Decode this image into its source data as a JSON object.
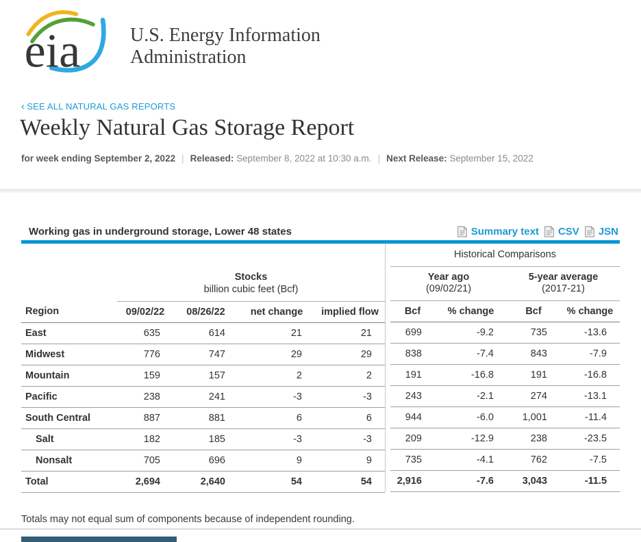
{
  "colors": {
    "accent_blue": "#0096d6",
    "link_blue": "#1b9bd3",
    "dark_bar": "#335d72",
    "logo_yellow": "#f2b31c",
    "logo_green": "#55a038",
    "logo_blue": "#2fa8e1"
  },
  "brand": {
    "logo_text": "eia",
    "org_line1": "U.S. Energy Information",
    "org_line2": "Administration"
  },
  "nav": {
    "back_chevron": "‹",
    "back_label": "SEE ALL NATURAL GAS REPORTS"
  },
  "header": {
    "title": "Weekly Natural Gas Storage Report",
    "week_ending": "for week ending September 2, 2022",
    "released_label": "Released:",
    "released_value": "September 8, 2022 at 10:30 a.m.",
    "next_release_label": "Next Release:",
    "next_release_value": "September 15, 2022",
    "separator": "|"
  },
  "report": {
    "title": "Working gas in underground storage, Lower 48 states",
    "links": [
      {
        "icon": "document-icon",
        "label": "Summary text"
      },
      {
        "icon": "document-icon",
        "label": "CSV"
      },
      {
        "icon": "document-icon",
        "label": "JSN"
      }
    ]
  },
  "table": {
    "group_headers": {
      "historical": "Historical Comparisons",
      "stocks_title": "Stocks",
      "stocks_subtitle": "billion cubic feet (Bcf)",
      "year_ago_title": "Year ago",
      "year_ago_subtitle": "(09/02/21)",
      "five_year_title": "5-year average",
      "five_year_subtitle": "(2017-21)"
    },
    "columns": [
      "Region",
      "09/02/22",
      "08/26/22",
      "net change",
      "implied flow",
      "Bcf",
      "% change",
      "Bcf",
      "% change"
    ],
    "rows": [
      {
        "region": "East",
        "indent": false,
        "bold": false,
        "values": [
          "635",
          "614",
          "21",
          "21",
          "699",
          "-9.2",
          "735",
          "-13.6"
        ]
      },
      {
        "region": "Midwest",
        "indent": false,
        "bold": false,
        "values": [
          "776",
          "747",
          "29",
          "29",
          "838",
          "-7.4",
          "843",
          "-7.9"
        ]
      },
      {
        "region": "Mountain",
        "indent": false,
        "bold": false,
        "values": [
          "159",
          "157",
          "2",
          "2",
          "191",
          "-16.8",
          "191",
          "-16.8"
        ]
      },
      {
        "region": "Pacific",
        "indent": false,
        "bold": false,
        "values": [
          "238",
          "241",
          "-3",
          "-3",
          "243",
          "-2.1",
          "274",
          "-13.1"
        ]
      },
      {
        "region": "South Central",
        "indent": false,
        "bold": false,
        "values": [
          "887",
          "881",
          "6",
          "6",
          "944",
          "-6.0",
          "1,001",
          "-11.4"
        ]
      },
      {
        "region": "Salt",
        "indent": true,
        "bold": false,
        "values": [
          "182",
          "185",
          "-3",
          "-3",
          "209",
          "-12.9",
          "238",
          "-23.5"
        ]
      },
      {
        "region": "Nonsalt",
        "indent": true,
        "bold": false,
        "values": [
          "705",
          "696",
          "9",
          "9",
          "735",
          "-4.1",
          "762",
          "-7.5"
        ]
      },
      {
        "region": "Total",
        "indent": false,
        "bold": true,
        "values": [
          "2,694",
          "2,640",
          "54",
          "54",
          "2,916",
          "-7.6",
          "3,043",
          "-11.5"
        ]
      }
    ],
    "footnote": "Totals may not equal sum of components because of independent rounding."
  }
}
